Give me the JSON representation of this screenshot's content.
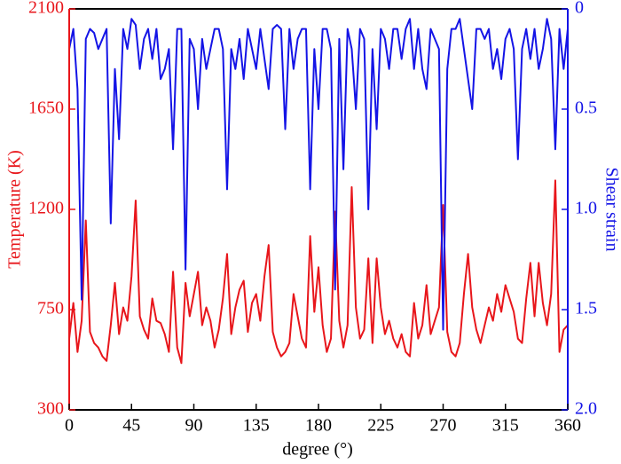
{
  "chart_data": {
    "type": "line",
    "xlabel": "degree (°)",
    "ylabel": "Temperature (K)",
    "y2label": "Shear strain",
    "xlim": [
      0,
      360
    ],
    "xticks": [
      0,
      45,
      90,
      135,
      180,
      225,
      270,
      315,
      360
    ],
    "ylim": [
      300,
      2100
    ],
    "yticks": [
      300,
      750,
      1200,
      1650,
      2100
    ],
    "y2lim": [
      2,
      0
    ],
    "y2ticks": [
      0,
      0.5,
      {
        "value": 1,
        "label": "1.0"
      },
      1.5,
      {
        "value": 2,
        "label": "2.0"
      }
    ],
    "x": [
      0,
      3,
      6,
      9,
      12,
      15,
      18,
      21,
      24,
      27,
      30,
      33,
      36,
      39,
      42,
      45,
      48,
      51,
      54,
      57,
      60,
      63,
      66,
      69,
      72,
      75,
      78,
      81,
      84,
      87,
      90,
      93,
      96,
      99,
      102,
      105,
      108,
      111,
      114,
      117,
      120,
      123,
      126,
      129,
      132,
      135,
      138,
      141,
      144,
      147,
      150,
      153,
      156,
      159,
      162,
      165,
      168,
      171,
      174,
      177,
      180,
      183,
      186,
      189,
      192,
      195,
      198,
      201,
      204,
      207,
      210,
      213,
      216,
      219,
      222,
      225,
      228,
      231,
      234,
      237,
      240,
      243,
      246,
      249,
      252,
      255,
      258,
      261,
      264,
      267,
      270,
      273,
      276,
      279,
      282,
      285,
      288,
      291,
      294,
      297,
      300,
      303,
      306,
      309,
      312,
      315,
      318,
      321,
      324,
      327,
      330,
      333,
      336,
      339,
      342,
      345,
      348,
      351,
      354,
      357,
      360
    ],
    "series": [
      {
        "name": "Temperature",
        "color": "#e8161b",
        "axis": "y",
        "values": [
          620,
          780,
          560,
          700,
          1150,
          650,
          600,
          580,
          540,
          520,
          680,
          870,
          640,
          760,
          700,
          900,
          1240,
          720,
          660,
          620,
          800,
          700,
          690,
          640,
          560,
          920,
          580,
          510,
          870,
          720,
          820,
          920,
          680,
          760,
          700,
          580,
          660,
          800,
          1000,
          640,
          760,
          840,
          880,
          650,
          780,
          820,
          700,
          900,
          1040,
          650,
          580,
          540,
          560,
          600,
          820,
          720,
          620,
          580,
          1080,
          740,
          940,
          680,
          560,
          620,
          1190,
          700,
          580,
          680,
          1300,
          760,
          620,
          660,
          980,
          600,
          980,
          760,
          640,
          700,
          620,
          580,
          640,
          560,
          540,
          780,
          620,
          680,
          860,
          640,
          700,
          760,
          1220,
          650,
          560,
          540,
          600,
          820,
          1000,
          760,
          660,
          600,
          680,
          760,
          700,
          820,
          740,
          860,
          800,
          740,
          620,
          600,
          800,
          960,
          720,
          960,
          780,
          680,
          820,
          1330,
          560,
          660,
          680
        ]
      },
      {
        "name": "Shear strain",
        "color": "#1414e6",
        "axis": "y2",
        "values": [
          0.2,
          0.1,
          0.4,
          1.45,
          0.15,
          0.1,
          0.12,
          0.2,
          0.15,
          0.1,
          1.07,
          0.3,
          0.65,
          0.1,
          0.2,
          0.05,
          0.08,
          0.3,
          0.15,
          0.1,
          0.25,
          0.1,
          0.35,
          0.3,
          0.2,
          0.7,
          0.1,
          0.1,
          1.3,
          0.15,
          0.2,
          0.5,
          0.15,
          0.3,
          0.2,
          0.1,
          0.1,
          0.2,
          0.9,
          0.2,
          0.3,
          0.15,
          0.35,
          0.1,
          0.2,
          0.3,
          0.1,
          0.25,
          0.4,
          0.1,
          0.08,
          0.1,
          0.6,
          0.1,
          0.3,
          0.15,
          0.1,
          0.1,
          0.9,
          0.2,
          0.5,
          0.1,
          0.1,
          0.2,
          1.4,
          0.15,
          0.8,
          0.1,
          0.2,
          0.5,
          0.1,
          0.15,
          1.0,
          0.2,
          0.6,
          0.1,
          0.15,
          0.3,
          0.1,
          0.1,
          0.25,
          0.1,
          0.05,
          0.3,
          0.1,
          0.3,
          0.4,
          0.1,
          0.15,
          0.2,
          1.6,
          0.3,
          0.1,
          0.1,
          0.05,
          0.2,
          0.35,
          0.5,
          0.1,
          0.1,
          0.15,
          0.1,
          0.3,
          0.2,
          0.35,
          0.15,
          0.1,
          0.2,
          0.75,
          0.2,
          0.1,
          0.25,
          0.1,
          0.3,
          0.2,
          0.05,
          0.15,
          0.7,
          0.1,
          0.3,
          0.1
        ]
      }
    ]
  }
}
